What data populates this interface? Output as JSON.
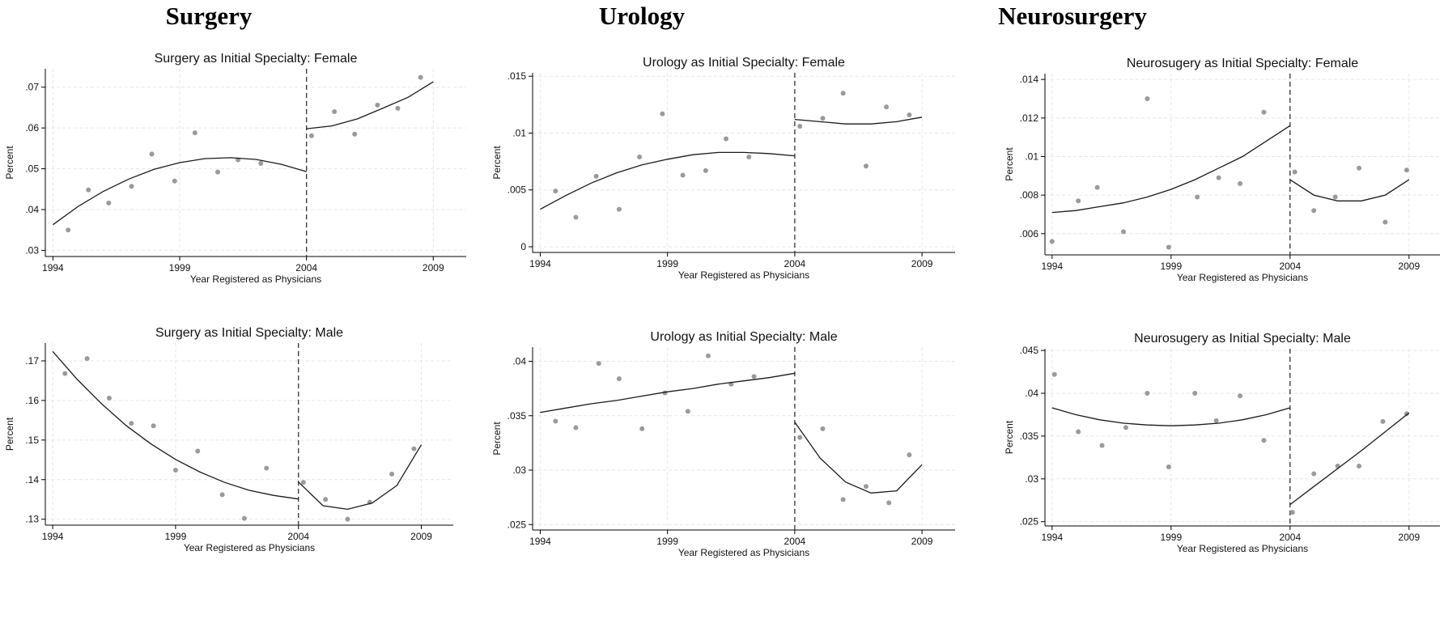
{
  "columns": [
    {
      "title": "Surgery"
    },
    {
      "title": "Urology"
    },
    {
      "title": "Neurosurgery"
    }
  ],
  "style": {
    "point_color": "#9a9a9a",
    "line_color": "#1a1a1a",
    "grid_color": "#e6e6e6",
    "axis_color": "#000000",
    "cutoff_line": "dashed",
    "grid": true
  },
  "chart_data": [
    {
      "type": "scatter",
      "title": "Surgery as Initial Specialty: Female",
      "xlabel": "Year Registered as Physicians",
      "ylabel": "Percent",
      "xlim": [
        1993.7,
        2010.3
      ],
      "xticks": [
        1994,
        1999,
        2004,
        2009
      ],
      "ylim": [
        0.0285,
        0.0745
      ],
      "yticks": [
        0.03,
        0.04,
        0.05,
        0.06,
        0.07
      ],
      "ytick_labels": [
        ".03",
        ".04",
        ".05",
        ".06",
        ".07"
      ],
      "cutoff": 2004,
      "points": {
        "x": [
          1994.6,
          1995.4,
          1996.2,
          1997.1,
          1997.9,
          1998.8,
          1999.6,
          2000.5,
          2001.3,
          2002.2,
          2004.2,
          2005.1,
          2005.9,
          2006.8,
          2007.6,
          2008.5
        ],
        "y": [
          0.035,
          0.0448,
          0.0416,
          0.0457,
          0.0536,
          0.047,
          0.0588,
          0.0492,
          0.0522,
          0.0513,
          0.0581,
          0.064,
          0.0585,
          0.0656,
          0.0648,
          0.0724
        ]
      },
      "fits": [
        {
          "x": [
            1994.0,
            1995.0,
            1996.0,
            1997.0,
            1998.0,
            1999.0,
            2000.0,
            2001.0,
            2002.0,
            2003.0,
            2004.0
          ],
          "y": [
            0.0363,
            0.0408,
            0.0445,
            0.0475,
            0.0499,
            0.0515,
            0.0525,
            0.0527,
            0.0523,
            0.0511,
            0.0493
          ]
        },
        {
          "x": [
            2004.0,
            2005.0,
            2006.0,
            2007.0,
            2008.0,
            2009.0
          ],
          "y": [
            0.0598,
            0.0605,
            0.0622,
            0.0648,
            0.0675,
            0.0713
          ]
        }
      ]
    },
    {
      "type": "scatter",
      "title": "Urology as Initial Specialty: Female",
      "xlabel": "Year Registered as Physicians",
      "ylabel": "Percent",
      "xlim": [
        1993.7,
        2010.3
      ],
      "xticks": [
        1994,
        1999,
        2004,
        2009
      ],
      "ylim": [
        -0.0005,
        0.0153
      ],
      "yticks": [
        0,
        0.005,
        0.01,
        0.015
      ],
      "ytick_labels": [
        "0",
        ".005",
        ".01",
        ".015"
      ],
      "cutoff": 2004,
      "points": {
        "x": [
          1994.6,
          1995.4,
          1996.2,
          1997.1,
          1997.9,
          1998.8,
          1999.6,
          2000.5,
          2001.3,
          2002.2,
          2004.2,
          2005.1,
          2005.9,
          2006.8,
          2007.6,
          2008.5
        ],
        "y": [
          0.0049,
          0.0026,
          0.0062,
          0.0033,
          0.0079,
          0.0117,
          0.0063,
          0.0067,
          0.0095,
          0.0079,
          0.0106,
          0.0113,
          0.0135,
          0.0071,
          0.0123,
          0.0116
        ]
      },
      "fits": [
        {
          "x": [
            1994.0,
            1995.0,
            1996.0,
            1997.0,
            1998.0,
            1999.0,
            2000.0,
            2001.0,
            2002.0,
            2003.0,
            2004.0
          ],
          "y": [
            0.0033,
            0.0045,
            0.0056,
            0.0065,
            0.0072,
            0.0077,
            0.0081,
            0.0083,
            0.0083,
            0.0082,
            0.008
          ]
        },
        {
          "x": [
            2004.0,
            2005.0,
            2006.0,
            2007.0,
            2008.0,
            2009.0
          ],
          "y": [
            0.0112,
            0.011,
            0.0108,
            0.0108,
            0.011,
            0.0114
          ]
        }
      ]
    },
    {
      "type": "scatter",
      "title": "Neurosugery as Initial Specialty: Female",
      "xlabel": "Year Registered as Physicians",
      "ylabel": "Percent",
      "xlim": [
        1993.7,
        2010.3
      ],
      "xticks": [
        1994,
        1999,
        2004,
        2009
      ],
      "ylim": [
        0.0049,
        0.0143
      ],
      "yticks": [
        0.006,
        0.008,
        0.01,
        0.012,
        0.014
      ],
      "ytick_labels": [
        ".006",
        ".008",
        ".01",
        ".012",
        ".014"
      ],
      "cutoff": 2004,
      "points": {
        "x": [
          1994.0,
          1995.1,
          1995.9,
          1997.0,
          1998.0,
          1998.9,
          2000.1,
          2001.0,
          2001.9,
          2002.9,
          2004.2,
          2005.0,
          2005.9,
          2006.9,
          2008.0,
          2008.9
        ],
        "y": [
          0.0056,
          0.0077,
          0.0084,
          0.0061,
          0.013,
          0.0053,
          0.0079,
          0.0089,
          0.0086,
          0.0123,
          0.0092,
          0.0072,
          0.0079,
          0.0094,
          0.0066,
          0.0093
        ]
      },
      "fits": [
        {
          "x": [
            1994.0,
            1995.0,
            1996.0,
            1997.0,
            1998.0,
            1999.0,
            2000.0,
            2001.0,
            2002.0,
            2003.0,
            2004.0
          ],
          "y": [
            0.0071,
            0.0072,
            0.0074,
            0.0076,
            0.0079,
            0.0083,
            0.0088,
            0.0094,
            0.01,
            0.0108,
            0.0116
          ]
        },
        {
          "x": [
            2004.0,
            2005.0,
            2006.0,
            2007.0,
            2008.0,
            2009.0
          ],
          "y": [
            0.0088,
            0.008,
            0.0077,
            0.0077,
            0.008,
            0.0088
          ]
        }
      ]
    },
    {
      "type": "scatter",
      "title": "Surgery as Initial Specialty: Male",
      "xlabel": "Year Registered as Physicians",
      "ylabel": "Percent",
      "xlim": [
        1993.7,
        2010.3
      ],
      "xticks": [
        1994,
        1999,
        2004,
        2009
      ],
      "ylim": [
        0.1285,
        0.1745
      ],
      "yticks": [
        0.13,
        0.14,
        0.15,
        0.16,
        0.17
      ],
      "ytick_labels": [
        ".13",
        ".14",
        ".15",
        ".16",
        ".17"
      ],
      "cutoff": 2004,
      "points": {
        "x": [
          1994.5,
          1995.4,
          1996.3,
          1997.2,
          1998.1,
          1999.0,
          1999.9,
          2000.9,
          2001.8,
          2002.7,
          2004.2,
          2005.1,
          2006.0,
          2006.9,
          2007.8,
          2008.7
        ],
        "y": [
          0.1668,
          0.1706,
          0.1606,
          0.1542,
          0.1536,
          0.1424,
          0.1472,
          0.1362,
          0.1302,
          0.1429,
          0.1393,
          0.135,
          0.13,
          0.1343,
          0.1414,
          0.1478
        ]
      },
      "fits": [
        {
          "x": [
            1994.0,
            1995.0,
            1996.0,
            1997.0,
            1998.0,
            1999.0,
            2000.0,
            2001.0,
            2002.0,
            2003.0,
            2004.0
          ],
          "y": [
            0.1724,
            0.1653,
            0.1591,
            0.1536,
            0.149,
            0.1451,
            0.1419,
            0.1393,
            0.1373,
            0.136,
            0.1351
          ]
        },
        {
          "x": [
            2004.0,
            2005.0,
            2006.0,
            2007.0,
            2008.0,
            2009.0
          ],
          "y": [
            0.1394,
            0.1334,
            0.1325,
            0.1341,
            0.1385,
            0.1488
          ]
        }
      ]
    },
    {
      "type": "scatter",
      "title": "Urology as Initial Specialty: Male",
      "xlabel": "Year Registered as Physicians",
      "ylabel": "Percent",
      "xlim": [
        1993.7,
        2010.3
      ],
      "xticks": [
        1994,
        1999,
        2004,
        2009
      ],
      "ylim": [
        0.0245,
        0.0413
      ],
      "yticks": [
        0.025,
        0.03,
        0.035,
        0.04
      ],
      "ytick_labels": [
        ".025",
        ".03",
        ".035",
        ".04"
      ],
      "cutoff": 2004,
      "points": {
        "x": [
          1994.6,
          1995.4,
          1996.3,
          1997.1,
          1998.0,
          1998.9,
          1999.8,
          2000.6,
          2001.5,
          2002.4,
          2004.2,
          2005.1,
          2005.9,
          2006.8,
          2007.7,
          2008.5
        ],
        "y": [
          0.0345,
          0.0339,
          0.0398,
          0.0384,
          0.0338,
          0.0371,
          0.0354,
          0.0405,
          0.0379,
          0.0386,
          0.033,
          0.0338,
          0.0273,
          0.0285,
          0.027,
          0.0314
        ]
      },
      "fits": [
        {
          "x": [
            1994.0,
            1995.0,
            1996.0,
            1997.0,
            1998.0,
            1999.0,
            2000.0,
            2001.0,
            2002.0,
            2003.0,
            2004.0
          ],
          "y": [
            0.0353,
            0.0357,
            0.0361,
            0.0364,
            0.0368,
            0.0372,
            0.0375,
            0.0379,
            0.0382,
            0.0385,
            0.0389
          ]
        },
        {
          "x": [
            2004.0,
            2005.0,
            2006.0,
            2007.0,
            2008.0,
            2009.0
          ],
          "y": [
            0.0344,
            0.0311,
            0.0289,
            0.0279,
            0.0281,
            0.0305
          ]
        }
      ]
    },
    {
      "type": "scatter",
      "title": "Neurosugery as Initial Specialty: Male",
      "xlabel": "Year Registered as Physicians",
      "ylabel": "Percent",
      "xlim": [
        1993.7,
        2010.3
      ],
      "xticks": [
        1994,
        1999,
        2004,
        2009
      ],
      "ylim": [
        0.0245,
        0.0452
      ],
      "yticks": [
        0.025,
        0.03,
        0.035,
        0.04,
        0.045
      ],
      "ytick_labels": [
        ".025",
        ".03",
        ".035",
        ".04",
        ".045"
      ],
      "cutoff": 2004,
      "points": {
        "x": [
          1994.1,
          1995.1,
          1996.1,
          1997.1,
          1998.0,
          1998.9,
          2000.0,
          2000.9,
          2001.9,
          2002.9,
          2004.1,
          2005.0,
          2006.0,
          2006.9,
          2007.9,
          2008.9
        ],
        "y": [
          0.0422,
          0.0355,
          0.0339,
          0.036,
          0.04,
          0.0314,
          0.04,
          0.0368,
          0.0397,
          0.0345,
          0.0261,
          0.0306,
          0.0315,
          0.0315,
          0.0367,
          0.0376
        ]
      },
      "fits": [
        {
          "x": [
            1994.0,
            1995.0,
            1996.0,
            1997.0,
            1998.0,
            1999.0,
            2000.0,
            2001.0,
            2002.0,
            2003.0,
            2004.0
          ],
          "y": [
            0.0383,
            0.0375,
            0.0369,
            0.0365,
            0.0363,
            0.0362,
            0.0363,
            0.0365,
            0.0369,
            0.0375,
            0.0383
          ]
        },
        {
          "x": [
            2004.0,
            2005.0,
            2006.0,
            2007.0,
            2008.0,
            2009.0
          ],
          "y": [
            0.027,
            0.0291,
            0.0312,
            0.0333,
            0.0355,
            0.0377
          ]
        }
      ]
    }
  ]
}
